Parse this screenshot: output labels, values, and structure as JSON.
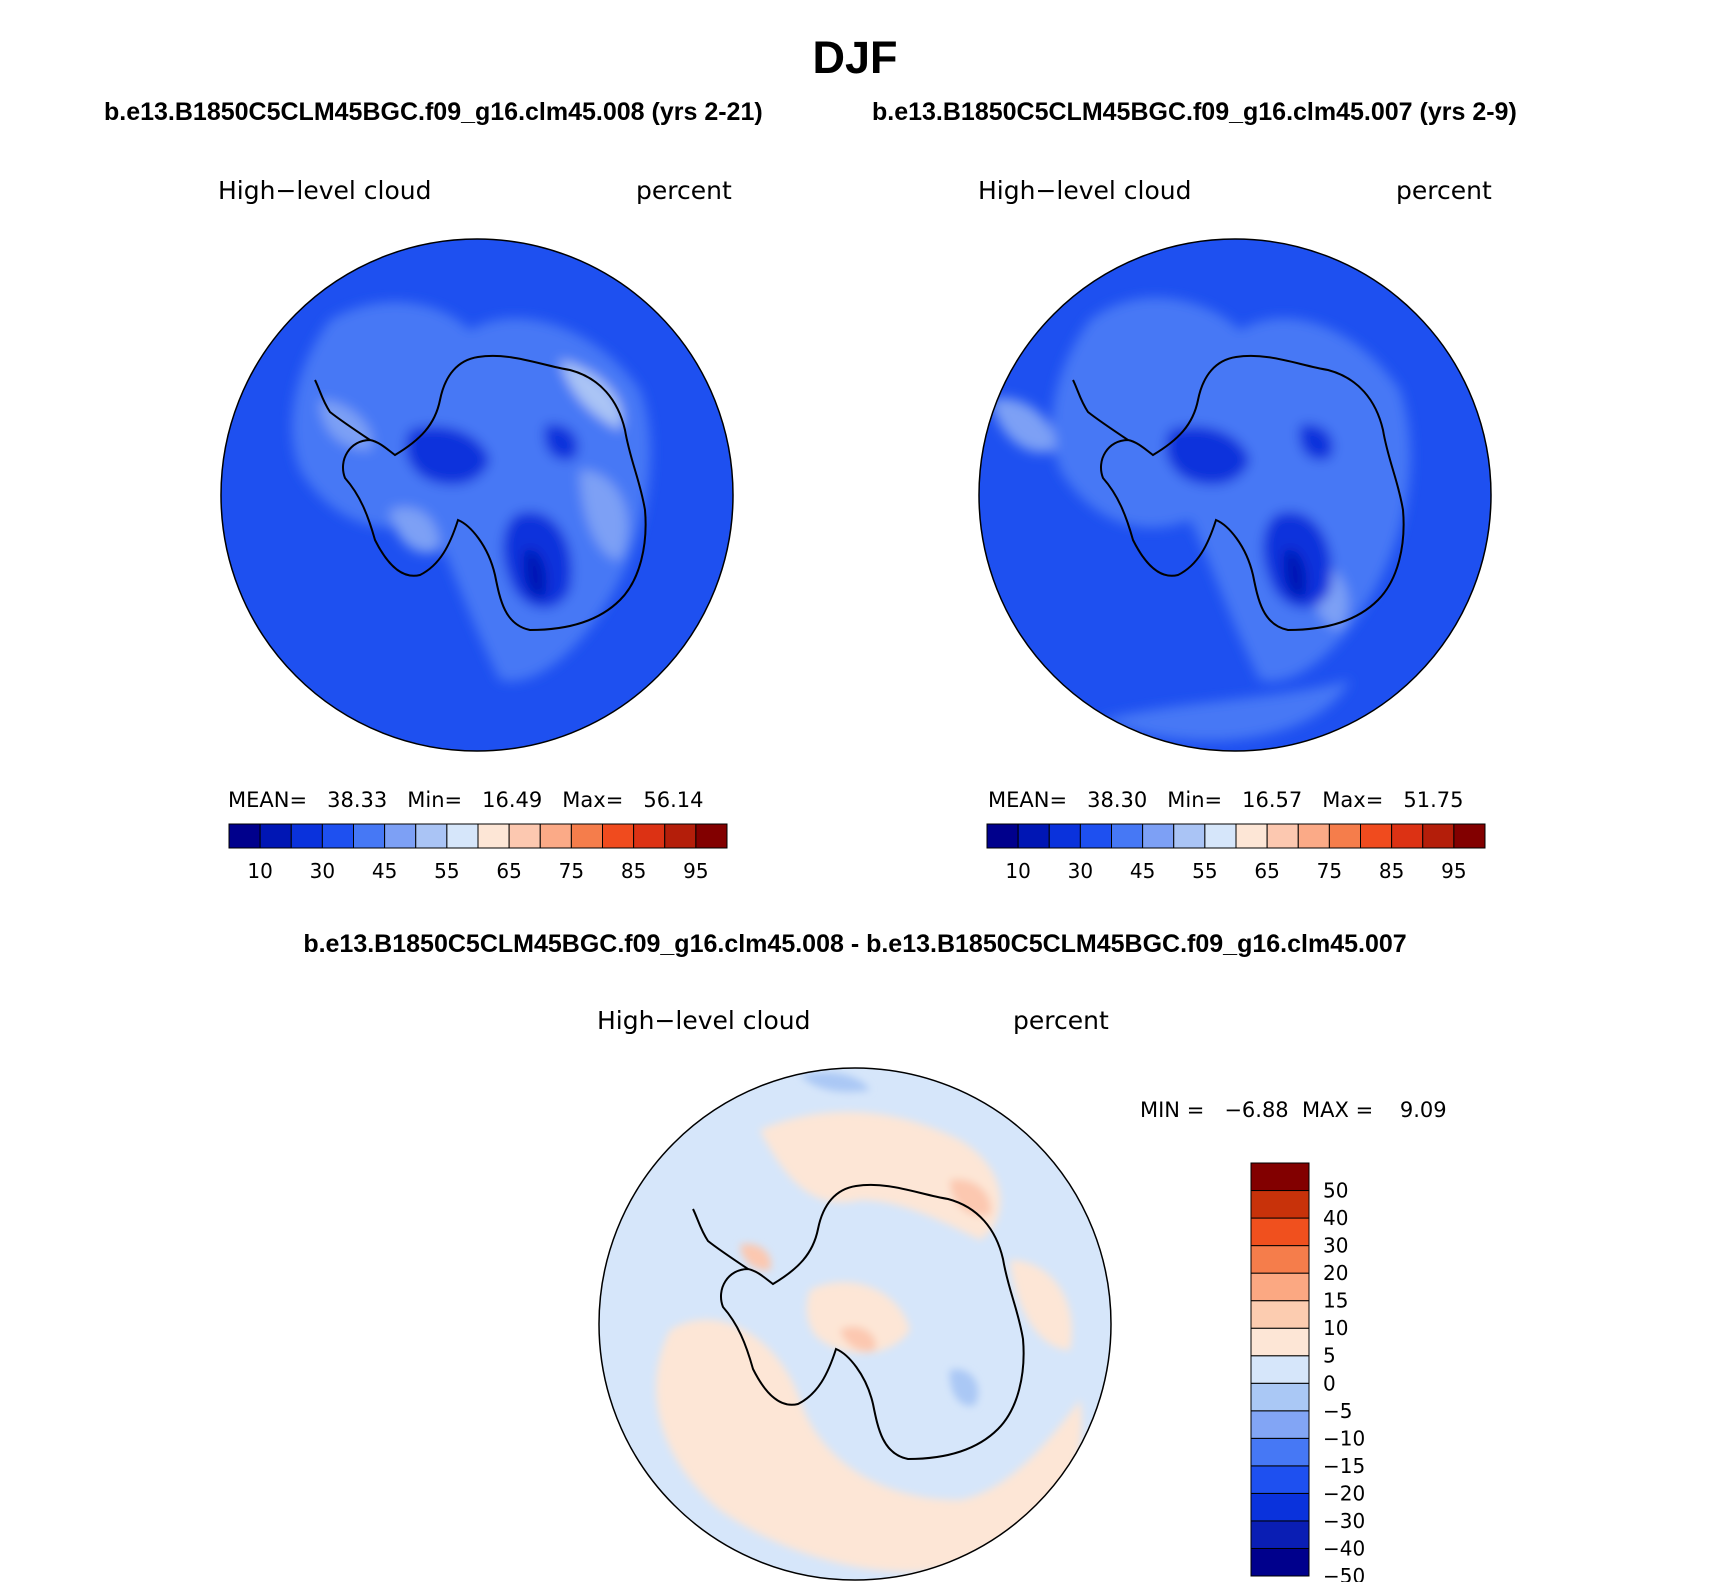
{
  "title": "DJF",
  "panels": [
    {
      "case_title": "b.e13.B1850C5CLM45BGC.f09_g16.clm45.008 (yrs 2-21)",
      "variable": "High−level cloud",
      "units": "percent",
      "stats": {
        "mean_label": "MEAN=",
        "mean": "38.33",
        "min_label": "Min=",
        "min": "16.49",
        "max_label": "Max=",
        "max": "56.14"
      }
    },
    {
      "case_title": "b.e13.B1850C5CLM45BGC.f09_g16.clm45.007 (yrs 2-9)",
      "variable": "High−level cloud",
      "units": "percent",
      "stats": {
        "mean_label": "MEAN=",
        "mean": "38.30",
        "min_label": "Min=",
        "min": "16.57",
        "max_label": "Max=",
        "max": "51.75"
      }
    }
  ],
  "abs_colorbar": {
    "colors": [
      "#00008c",
      "#0016b4",
      "#0a32dc",
      "#1e50f0",
      "#4678f5",
      "#7da0f5",
      "#aac4f5",
      "#d6e6fa",
      "#fde6d6",
      "#fcc8b0",
      "#fbaa87",
      "#f57d4b",
      "#f04b1e",
      "#dc3214",
      "#b41e0a",
      "#820000"
    ],
    "tick_labels": [
      "10",
      "30",
      "45",
      "55",
      "65",
      "75",
      "85",
      "95"
    ]
  },
  "diff_panel": {
    "title": "b.e13.B1850C5CLM45BGC.f09_g16.clm45.008 - b.e13.B1850C5CLM45BGC.f09_g16.clm45.007",
    "variable": "High−level cloud",
    "units": "percent",
    "stats_text": "MIN =   −6.88  MAX =    9.09"
  },
  "diff_colorbar": {
    "colors_bottom_to_top": [
      "#00008c",
      "#0a1eb4",
      "#0a32dc",
      "#1e50f0",
      "#4678f5",
      "#82a5f5",
      "#aac8f5",
      "#d6e6fa",
      "#fde6d6",
      "#fcccb0",
      "#fba882",
      "#f57d4b",
      "#f0501e",
      "#c8320a",
      "#820000"
    ],
    "tick_labels_top_to_bottom": [
      "50",
      "40",
      "30",
      "20",
      "15",
      "10",
      "5",
      "0",
      "−5",
      "−10",
      "−15",
      "−20",
      "−30",
      "−40",
      "−50"
    ]
  },
  "map_colors": {
    "ocean_left": "#1e50f0",
    "ocean_right": "#1e50f0",
    "diff_base": "#d6e6fa",
    "continent_outline": "#000000"
  }
}
